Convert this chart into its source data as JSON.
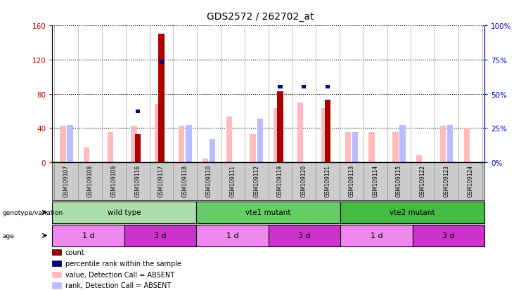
{
  "title": "GDS2572 / 262702_at",
  "samples": [
    "GSM109107",
    "GSM109108",
    "GSM109109",
    "GSM109116",
    "GSM109117",
    "GSM109118",
    "GSM109110",
    "GSM109111",
    "GSM109112",
    "GSM109119",
    "GSM109120",
    "GSM109121",
    "GSM109113",
    "GSM109114",
    "GSM109115",
    "GSM109122",
    "GSM109123",
    "GSM109124"
  ],
  "count_values": [
    0,
    0,
    0,
    33,
    150,
    0,
    0,
    0,
    0,
    83,
    0,
    73,
    0,
    0,
    0,
    0,
    0,
    0
  ],
  "percentile_values": [
    0,
    0,
    0,
    37,
    73,
    0,
    0,
    0,
    0,
    55,
    55,
    55,
    0,
    0,
    0,
    0,
    0,
    0
  ],
  "absent_value_values": [
    43,
    17,
    35,
    43,
    68,
    43,
    4,
    53,
    33,
    63,
    70,
    63,
    35,
    35,
    35,
    8,
    43,
    40
  ],
  "absent_rank_values": [
    27,
    0,
    0,
    0,
    0,
    27,
    17,
    0,
    32,
    0,
    0,
    0,
    22,
    0,
    27,
    0,
    27,
    0
  ],
  "ylim_left": [
    0,
    160
  ],
  "ylim_right": [
    0,
    100
  ],
  "yticks_left": [
    0,
    40,
    80,
    120,
    160
  ],
  "yticks_right": [
    0,
    25,
    50,
    75,
    100
  ],
  "ytick_labels_left": [
    "0",
    "40",
    "80",
    "120",
    "160"
  ],
  "ytick_labels_right": [
    "0%",
    "25%",
    "50%",
    "75%",
    "100%"
  ],
  "genotype_groups": [
    {
      "label": "wild type",
      "start": 0,
      "end": 6,
      "color": "#aaddaa"
    },
    {
      "label": "vte1 mutant",
      "start": 6,
      "end": 12,
      "color": "#66cc66"
    },
    {
      "label": "vte2 mutant",
      "start": 12,
      "end": 18,
      "color": "#44bb44"
    }
  ],
  "age_groups": [
    {
      "label": "1 d",
      "start": 0,
      "end": 3,
      "color": "#ee88ee"
    },
    {
      "label": "3 d",
      "start": 3,
      "end": 6,
      "color": "#cc33cc"
    },
    {
      "label": "1 d",
      "start": 6,
      "end": 9,
      "color": "#ee88ee"
    },
    {
      "label": "3 d",
      "start": 9,
      "end": 12,
      "color": "#cc33cc"
    },
    {
      "label": "1 d",
      "start": 12,
      "end": 15,
      "color": "#ee88ee"
    },
    {
      "label": "3 d",
      "start": 15,
      "end": 18,
      "color": "#cc33cc"
    }
  ],
  "count_color": "#aa0000",
  "percentile_color": "#000099",
  "absent_value_color": "#ffbbbb",
  "absent_rank_color": "#bbbbff",
  "xtick_bg_color": "#cccccc",
  "left_tick_color": "#cc0000",
  "right_tick_color": "#0000cc",
  "legend_items": [
    {
      "label": "count",
      "color": "#aa0000"
    },
    {
      "label": "percentile rank within the sample",
      "color": "#000099"
    },
    {
      "label": "value, Detection Call = ABSENT",
      "color": "#ffbbbb"
    },
    {
      "label": "rank, Detection Call = ABSENT",
      "color": "#bbbbff"
    }
  ]
}
